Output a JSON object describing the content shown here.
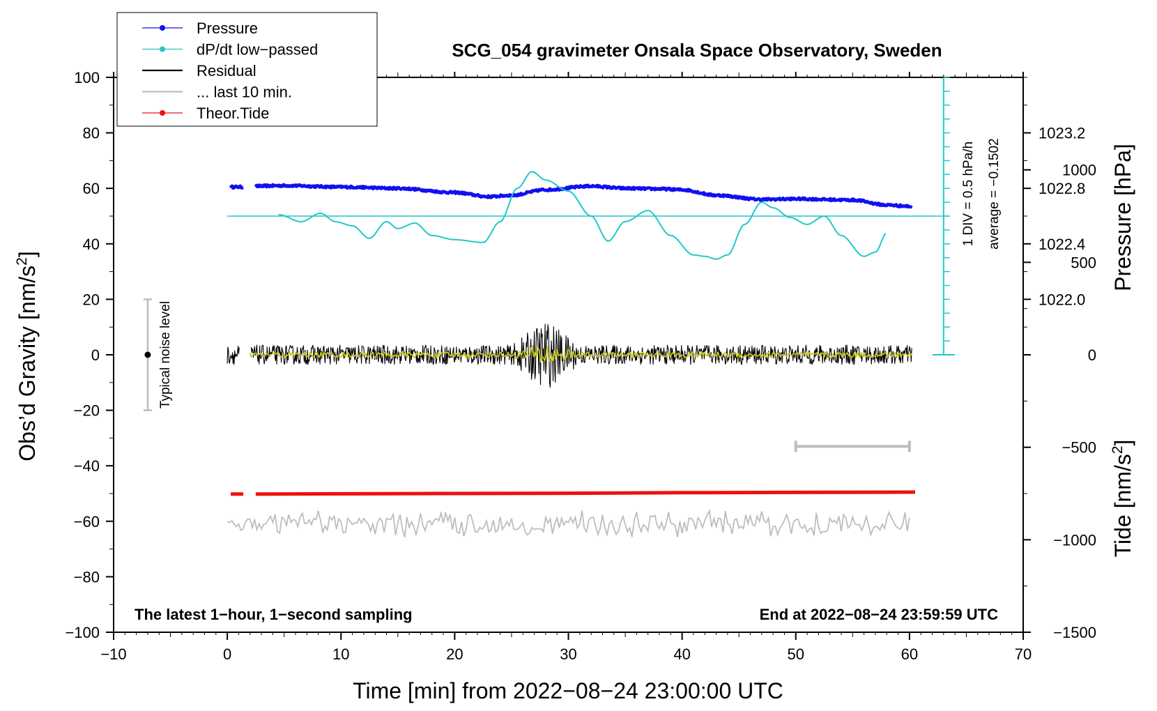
{
  "chart_data": {
    "type": "line",
    "title": "SCG_054 gravimeter Onsala Space Observatory, Sweden",
    "xlabel": "Time [min] from 2022−08−24 23:00:00 UTC",
    "ylabel": "Obs’d Gravity [nm/s²]",
    "ylabel_right_pressure": "Pressure [hPa]",
    "ylabel_right_tide": "Tide [nm/s²]",
    "xlim": [
      -10,
      70
    ],
    "ylim": [
      -100,
      100
    ],
    "x_ticks": [
      -10,
      0,
      10,
      20,
      30,
      40,
      50,
      60,
      70
    ],
    "x_tick_labels": [
      "−10",
      "0",
      "10",
      "20",
      "30",
      "40",
      "50",
      "60",
      "70"
    ],
    "y_ticks": [
      100,
      80,
      60,
      40,
      20,
      0,
      -20,
      -40,
      -60,
      -80,
      -100
    ],
    "y_tick_labels": [
      "100",
      "80",
      "60",
      "40",
      "20",
      "0",
      "−20",
      "−40",
      "−60",
      "−80",
      "−100"
    ],
    "pressure_axis": {
      "ticks": [
        1023.2,
        1022.8,
        1022.4,
        1022.0
      ],
      "tick_labels": [
        "1023.2",
        "1022.8",
        "1022.4",
        "1022.0"
      ],
      "gravity_equivalent": [
        80,
        60,
        40,
        20
      ]
    },
    "tide_axis": {
      "ticks": [
        1000,
        500,
        0,
        -500,
        -1000,
        -1500
      ],
      "tick_labels": [
        "1000",
        "500",
        "0",
        "−500",
        "−1000",
        "−1500"
      ],
      "range": [
        -1500,
        1500
      ]
    },
    "legend": {
      "placement": "top-left",
      "entries": [
        {
          "label": "Pressure",
          "color": "#1010f0",
          "marker": "dot"
        },
        {
          "label": "dP/dt low−passed",
          "color": "#20c8c8",
          "marker": "dot"
        },
        {
          "label": "Residual",
          "color": "#000000",
          "marker": "none"
        },
        {
          "label": "... last 10 min.",
          "color": "#bdbdbd",
          "marker": "none"
        },
        {
          "label": "Theor.Tide",
          "color": "#ee1010",
          "marker": "dot"
        }
      ]
    },
    "series": [
      {
        "name": "Pressure",
        "color": "#1010f0",
        "x": [
          0.3,
          1.4,
          2.5,
          5,
          10,
          15,
          20,
          23,
          25,
          28,
          32,
          35,
          38,
          40,
          43,
          47,
          50,
          55,
          58,
          60.2
        ],
        "y": [
          60.5,
          60.5,
          60.8,
          61,
          60.5,
          60,
          58.5,
          57,
          57.5,
          59.5,
          60.8,
          60,
          59.8,
          59.5,
          57.5,
          56,
          56.2,
          55.8,
          54,
          53.5
        ],
        "gap": [
          1.4,
          2.5
        ]
      },
      {
        "name": "dP/dt low−passed",
        "color": "#20c8c8",
        "x": [
          4.5,
          6.5,
          8.2,
          9.5,
          11,
          12.5,
          14,
          15,
          16.5,
          18,
          20,
          22.5,
          24,
          25.5,
          26.8,
          28,
          30,
          32,
          33.5,
          35,
          37,
          39,
          41,
          42,
          43,
          44,
          45.5,
          47,
          48,
          49.5,
          51,
          52.5,
          54,
          56,
          57,
          58
        ],
        "y": [
          50.5,
          48,
          51,
          48,
          46.5,
          42,
          48,
          45.5,
          47.5,
          43,
          41.5,
          40.5,
          48,
          60,
          66,
          63,
          59,
          50,
          41,
          48,
          52,
          43,
          36,
          35.5,
          34.5,
          36,
          47,
          55,
          53,
          49.5,
          47,
          50,
          43,
          35.5,
          37,
          44
        ]
      },
      {
        "name": "dP/dt average line",
        "color": "#20c8c8",
        "x": [
          0,
          63.5
        ],
        "y": [
          50,
          50
        ]
      },
      {
        "name": "Residual",
        "color": "#000000",
        "x_range": [
          0,
          60.2
        ],
        "center": 0,
        "amplitude_typical": 3.5,
        "amplitude_peak": 13,
        "peak_at": 28
      },
      {
        "name": "Residual low-passed",
        "color": "#c8c81a",
        "x_range": [
          2,
          60.2
        ],
        "center": 0,
        "amplitude_typical": 1,
        "amplitude_peak": 4.5,
        "peak_at": 28
      },
      {
        "name": "... last 10 min.",
        "color": "#bdbdbd",
        "x_range": [
          0,
          60.2
        ],
        "center": -61,
        "amplitude_typical": 3.5
      },
      {
        "name": "Theor.Tide",
        "color": "#ee1010",
        "x": [
          0.3,
          1.4,
          2.5,
          10,
          20,
          30,
          40,
          50,
          60.5
        ],
        "y": [
          -50.2,
          -50.2,
          -50.2,
          -50.1,
          -50,
          -49.9,
          -49.7,
          -49.6,
          -49.5
        ],
        "gap": [
          1.4,
          2.5
        ]
      }
    ],
    "noise_bar": {
      "x": -7,
      "y": 0,
      "range": [
        -20,
        20
      ],
      "label": "Typical noise level"
    },
    "last10_bar": {
      "x_range": [
        50,
        60
      ],
      "y": -33,
      "color": "#bdbdbd"
    },
    "div_scale": {
      "x": 63,
      "y_range": [
        0,
        100
      ],
      "tick_step": 5,
      "label_div": "1 DIV = 0.5 hPa/h",
      "label_avg": "average = −0.1502"
    },
    "annotations": {
      "bottom_left": "The latest 1−hour, 1−second sampling",
      "bottom_right": "End at 2022−08−24 23:59:59 UTC"
    }
  }
}
